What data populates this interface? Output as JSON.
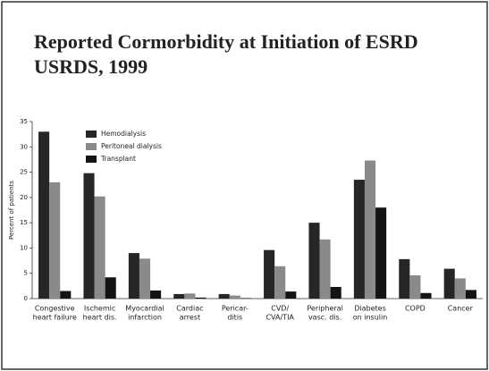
{
  "chart_data": {
    "type": "bar",
    "title": [
      "Reported Cormorbidity at Initiation of ESRD",
      "USRDS, 1999"
    ],
    "ylabel": "Percent of patients",
    "categories": [
      [
        "Congestive",
        "heart failure"
      ],
      [
        "Ischemic",
        "heart dis."
      ],
      [
        "Myocardial",
        "infarction"
      ],
      [
        "Cardiac",
        "arrest"
      ],
      [
        "Pericar-",
        "ditis"
      ],
      [
        "CVD/",
        "CVA/TIA"
      ],
      [
        "Peripheral",
        "vasc. dis."
      ],
      [
        "Diabetes",
        "on insulin"
      ],
      [
        "COPD"
      ],
      [
        "Cancer"
      ]
    ],
    "series": [
      {
        "name": "Hemodialysis",
        "color": "#262626",
        "values": [
          33,
          24.8,
          9,
          0.9,
          0.9,
          9.6,
          15,
          23.5,
          7.8,
          5.9
        ]
      },
      {
        "name": "Peritoneal dialysis",
        "color": "#8a8a8a",
        "values": [
          23,
          20.2,
          7.9,
          1.0,
          0.6,
          6.4,
          11.7,
          27.3,
          4.6,
          4.0
        ]
      },
      {
        "name": "Transplant",
        "color": "#141414",
        "values": [
          1.5,
          4.2,
          1.6,
          0.2,
          0.1,
          1.4,
          2.3,
          18,
          1.1,
          1.7
        ]
      }
    ],
    "ylim": [
      0,
      35
    ],
    "yticks": [
      0,
      5,
      10,
      15,
      20,
      25,
      30,
      35
    ],
    "legend": "upper left"
  }
}
